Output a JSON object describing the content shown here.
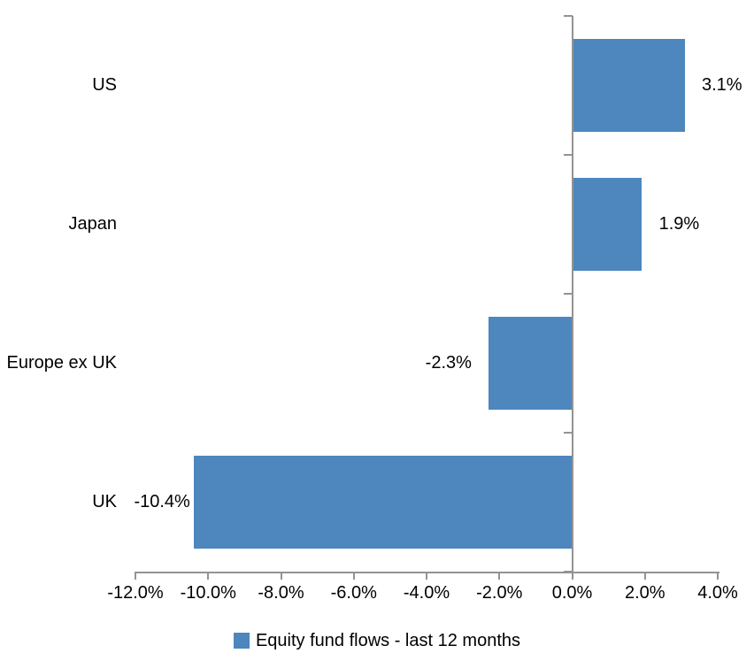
{
  "chart_data": {
    "type": "bar",
    "orientation": "horizontal",
    "title": "",
    "categories": [
      "US",
      "Japan",
      "Europe ex UK",
      "UK"
    ],
    "series": [
      {
        "name": "Equity fund flows - last 12 months",
        "values": [
          3.1,
          1.9,
          -2.3,
          -10.4
        ]
      }
    ],
    "data_labels": [
      "3.1%",
      "1.9%",
      "-2.3%",
      "-10.4%"
    ],
    "xlim": [
      -12,
      4
    ],
    "x_tick_values": [
      -12,
      -10,
      -8,
      -6,
      -4,
      -2,
      0,
      2,
      4
    ],
    "x_tick_labels": [
      "-12.0%",
      "-10.0%",
      "-8.0%",
      "-6.0%",
      "-4.0%",
      "-2.0%",
      "0.0%",
      "2.0%",
      "4.0%"
    ],
    "grid": false,
    "legend_position": "bottom",
    "legend": [
      "Equity fund flows - last 12 months"
    ],
    "colors": {
      "bar": "#4D87BE",
      "axis": "#939393",
      "text": "#000000",
      "background": "#FFFFFF"
    }
  }
}
